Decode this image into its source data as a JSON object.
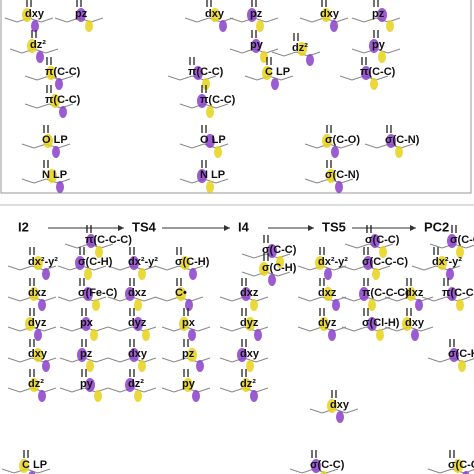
{
  "top_panel": {
    "labels": [
      "dxy",
      "pz",
      "dxy",
      "pz",
      "dxy",
      "pz",
      "dz²",
      "py",
      "dz²",
      "py",
      "π(C-C)",
      "π(C-C)",
      "C LP",
      "π(C-C)",
      "π(C-C)",
      "π(C-C)",
      "O LP",
      "O LP",
      "σ(C-O)",
      "σ(C-N)",
      "N LP",
      "N LP",
      "σ(C-N)"
    ]
  },
  "bottom_panel": {
    "stages": [
      "I2",
      "TS4",
      "I4",
      "TS5",
      "PC2"
    ],
    "labels": [
      "π(C-C-C)",
      "dx²-y²",
      "σ(C-H)",
      "dxz",
      "σ(Fe-C)",
      "dyz",
      "px",
      "dxy",
      "pz",
      "dz²",
      "py",
      "C LP",
      "dx²-y²",
      "σ(C-H)",
      "dxz",
      "C•",
      "dyz",
      "px",
      "dxy",
      "pz",
      "dz²",
      "py",
      "σ(C-C)",
      "σ(C-H)",
      "dxz",
      "dyz",
      "dxy",
      "dz²",
      "σ(C-C)",
      "dx²-y²",
      "σ(C-C-C)",
      "dxz",
      "π(C-C-C)",
      "dyz",
      "σ(Cl-H)",
      "dxy",
      "σ(C-C)",
      "dx²-y²",
      "σ(C-C)",
      "dxz",
      "π(C-C-C)",
      "dxy",
      "σ(C-H)",
      "σ(C-C)"
    ]
  }
}
